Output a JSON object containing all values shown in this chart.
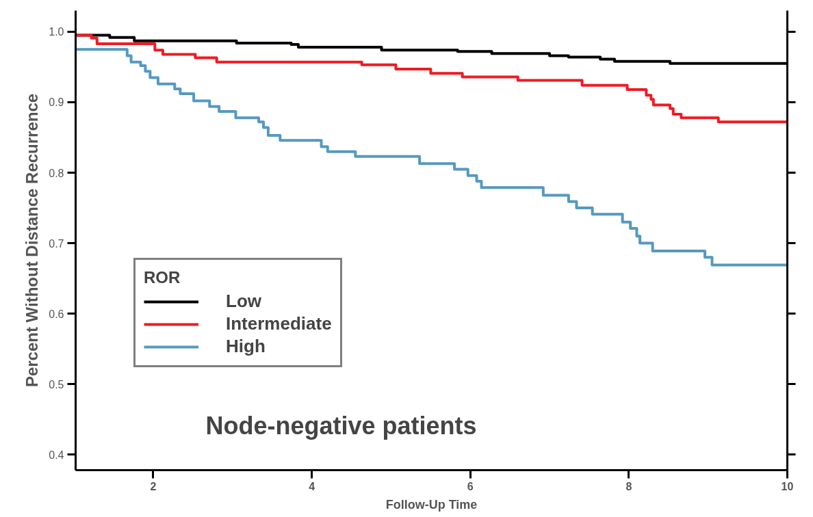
{
  "chart_data": {
    "type": "step",
    "xlabel": "Follow-Up Time",
    "ylabel": "Percent Without Distance Recurrence",
    "legend_title": "ROR",
    "annotations": [
      "Node-negative patients"
    ],
    "xlim": [
      1.02,
      10
    ],
    "xticks": [
      2,
      4,
      6,
      8,
      10
    ],
    "ylim": [
      0.378,
      1.03
    ],
    "yticks": [
      {
        "value": 1.0,
        "label": "1.0"
      },
      0.9,
      0.8,
      0.7,
      0.6,
      0.5,
      0.4
    ],
    "grid": false,
    "legend": "left",
    "marker": "none",
    "line_style": "solid",
    "series": [
      {
        "name": "Low",
        "color": "#000000",
        "x": [
          1.02,
          1.45,
          1.76,
          3.05,
          3.74,
          3.83,
          4.88,
          5.84,
          6.27,
          7.0,
          7.24,
          7.64,
          7.82,
          8.52,
          10
        ],
        "values": [
          0.995,
          0.992,
          0.987,
          0.984,
          0.982,
          0.978,
          0.974,
          0.972,
          0.969,
          0.966,
          0.964,
          0.961,
          0.958,
          0.955,
          0.955
        ]
      },
      {
        "name": "Intermediate",
        "color": "#ed1c24",
        "x": [
          1.02,
          1.22,
          1.29,
          2.02,
          2.12,
          2.53,
          2.8,
          4.63,
          5.06,
          5.5,
          5.9,
          6.6,
          7.41,
          7.98,
          8.22,
          8.28,
          8.31,
          8.52,
          8.56,
          8.66,
          9.13,
          10
        ],
        "values": [
          0.995,
          0.991,
          0.983,
          0.974,
          0.968,
          0.963,
          0.957,
          0.953,
          0.947,
          0.941,
          0.936,
          0.931,
          0.924,
          0.918,
          0.91,
          0.904,
          0.896,
          0.891,
          0.883,
          0.878,
          0.872,
          0.872
        ]
      },
      {
        "name": "High",
        "color": "#5599c0",
        "x": [
          1.02,
          1.67,
          1.72,
          1.84,
          1.9,
          1.96,
          2.06,
          2.27,
          2.34,
          2.51,
          2.71,
          2.83,
          3.04,
          3.33,
          3.39,
          3.45,
          3.6,
          4.12,
          4.2,
          4.55,
          5.36,
          5.8,
          5.97,
          6.08,
          6.14,
          6.92,
          7.24,
          7.34,
          7.54,
          7.92,
          8.02,
          8.1,
          8.14,
          8.3,
          8.96,
          9.05,
          10
        ],
        "values": [
          0.975,
          0.966,
          0.957,
          0.952,
          0.944,
          0.935,
          0.926,
          0.919,
          0.912,
          0.902,
          0.894,
          0.887,
          0.878,
          0.872,
          0.864,
          0.853,
          0.846,
          0.837,
          0.83,
          0.823,
          0.813,
          0.805,
          0.796,
          0.788,
          0.779,
          0.768,
          0.759,
          0.75,
          0.741,
          0.73,
          0.721,
          0.71,
          0.7,
          0.689,
          0.68,
          0.669,
          0.669
        ]
      }
    ]
  }
}
